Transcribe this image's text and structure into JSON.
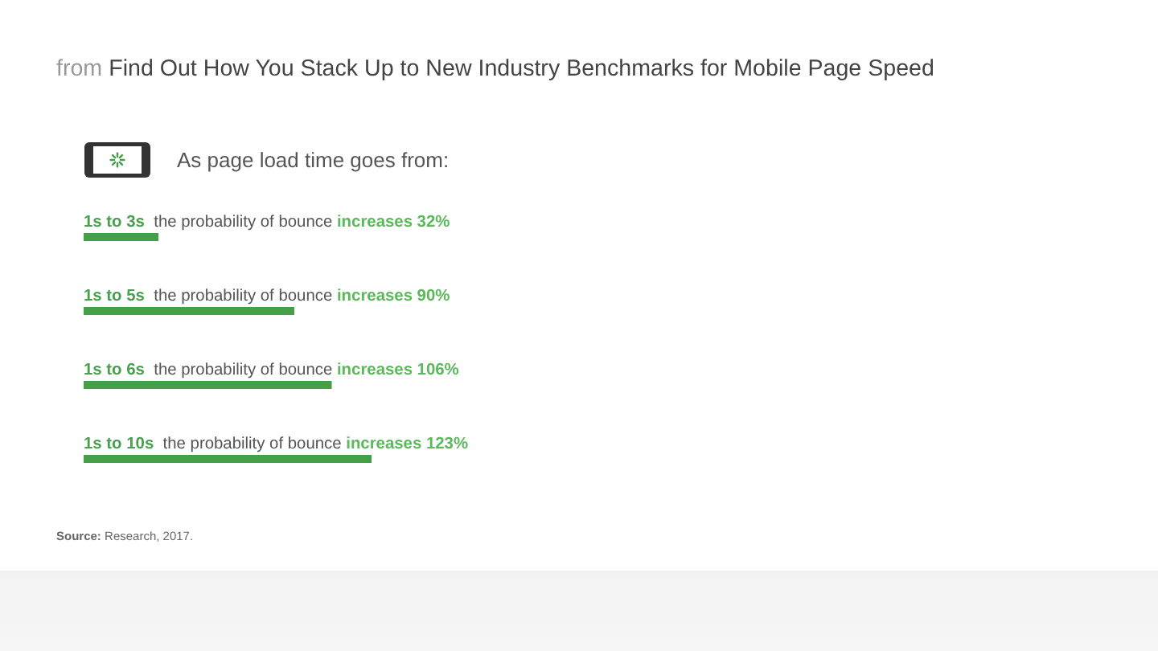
{
  "chart_data": {
    "type": "bar",
    "orientation": "horizontal",
    "title": "from Find Out How You Stack Up to New Industry Benchmarks for Mobile Page Speed",
    "subtitle": "As page load time goes from:",
    "categories": [
      "1s to 3s",
      "1s to 5s",
      "1s to 6s",
      "1s to 10s"
    ],
    "values": [
      32,
      90,
      106,
      123
    ],
    "color": "#43a047",
    "value_labels": [
      "the probability of bounce increases 32%",
      "the probability of bounce increases 90%",
      "the probability of bounce increases 106%",
      "the probability of bounce increases 123%"
    ],
    "tick_labels": "y",
    "annotations": [
      "Source: Research, 2017."
    ]
  }
}
